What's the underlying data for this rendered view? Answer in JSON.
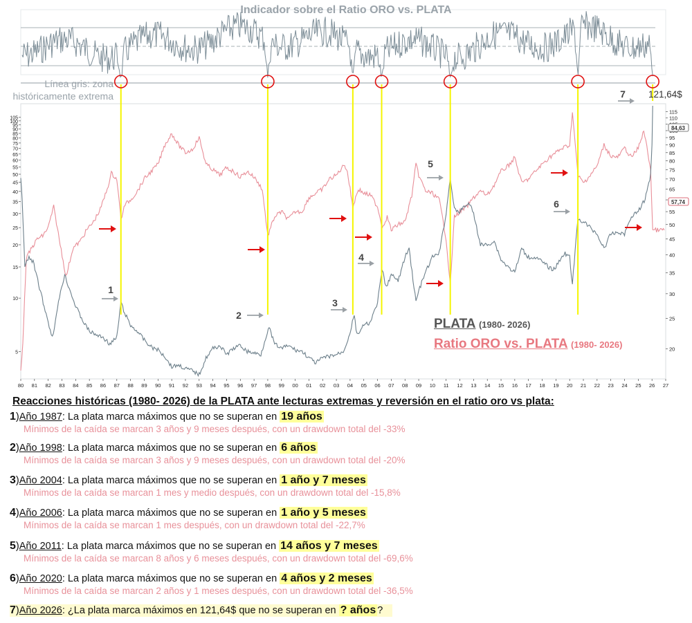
{
  "indicator_title": "Indicador sobre el Ratio ORO vs. PLATA",
  "gray_line_note": "Línea gris: zona históricamente extrema",
  "legend": {
    "silver_label": "PLATA",
    "silver_period": "(1980- 2026)",
    "ratio_label": "Ratio ORO vs. PLATA",
    "ratio_period": "(1980- 2026)"
  },
  "colors": {
    "silver": "#6c7f8a",
    "ratio": "#e88e98",
    "signal_line": "#f5f500",
    "circle": "#e01010",
    "arrow_red": "#e01010",
    "arrow_gray": "#9aa0a5",
    "indicator": "#7b8c96",
    "highlight": "#ffff9a"
  },
  "price_label": "121,64$",
  "ratio_value_label": "84,63",
  "silver_value_label": "57,74",
  "chart_data": {
    "type": "line",
    "x_tick_labels": [
      "80",
      "81",
      "82",
      "83",
      "84",
      "85",
      "86",
      "87",
      "88",
      "89",
      "90",
      "91",
      "92",
      "93",
      "94",
      "95",
      "96",
      "97",
      "98",
      "99",
      "00",
      "01",
      "02",
      "03",
      "04",
      "05",
      "06",
      "07",
      "08",
      "09",
      "10",
      "11",
      "12",
      "13",
      "14",
      "15",
      "16",
      "17",
      "18",
      "19",
      "20",
      "21",
      "22",
      "23",
      "24",
      "25",
      "26",
      "27"
    ],
    "x_range": [
      1980,
      2027
    ],
    "left_axis": {
      "scale": "log",
      "range": [
        3.5,
        125
      ],
      "ticks": [
        5,
        10,
        15,
        20,
        25,
        30,
        35,
        40,
        45,
        50,
        55,
        60,
        65,
        70,
        75,
        80,
        85,
        90,
        95,
        100,
        105
      ]
    },
    "right_axis": {
      "scale": "log",
      "range": [
        16,
        122
      ],
      "ticks": [
        20,
        25,
        30,
        35,
        40,
        45,
        50,
        55,
        60,
        65,
        70,
        75,
        80,
        85,
        90,
        95,
        100,
        105,
        110,
        115
      ]
    },
    "series": [
      {
        "name": "PLATA",
        "axis": "left",
        "points": [
          [
            1980.0,
            48
          ],
          [
            1980.1,
            36
          ],
          [
            1980.3,
            15
          ],
          [
            1980.6,
            17
          ],
          [
            1980.9,
            16
          ],
          [
            1981.3,
            12
          ],
          [
            1981.7,
            9
          ],
          [
            1982.3,
            6
          ],
          [
            1982.6,
            8
          ],
          [
            1982.9,
            11
          ],
          [
            1983.2,
            13.5
          ],
          [
            1983.6,
            11
          ],
          [
            1984.0,
            9
          ],
          [
            1984.5,
            7.5
          ],
          [
            1985.0,
            6.5
          ],
          [
            1985.5,
            6.2
          ],
          [
            1986.0,
            6.0
          ],
          [
            1986.5,
            5.5
          ],
          [
            1987.0,
            6.0
          ],
          [
            1987.3,
            9.5
          ],
          [
            1987.5,
            8.5
          ],
          [
            1988.0,
            7.0
          ],
          [
            1988.5,
            6.5
          ],
          [
            1989.0,
            5.8
          ],
          [
            1989.5,
            5.3
          ],
          [
            1990.0,
            5.1
          ],
          [
            1990.5,
            4.7
          ],
          [
            1991.0,
            4.1
          ],
          [
            1991.5,
            4.2
          ],
          [
            1992.0,
            4.0
          ],
          [
            1992.5,
            3.9
          ],
          [
            1993.0,
            3.7
          ],
          [
            1993.5,
            4.6
          ],
          [
            1994.0,
            5.2
          ],
          [
            1994.5,
            5.4
          ],
          [
            1995.0,
            4.8
          ],
          [
            1995.5,
            5.2
          ],
          [
            1996.0,
            5.4
          ],
          [
            1996.5,
            5.0
          ],
          [
            1997.0,
            4.9
          ],
          [
            1997.5,
            4.8
          ],
          [
            1997.9,
            6.2
          ],
          [
            1998.1,
            6.8
          ],
          [
            1998.5,
            5.5
          ],
          [
            1999.0,
            5.2
          ],
          [
            1999.5,
            5.4
          ],
          [
            2000.0,
            5.1
          ],
          [
            2000.5,
            5.0
          ],
          [
            2001.0,
            4.6
          ],
          [
            2001.5,
            4.3
          ],
          [
            2002.0,
            4.6
          ],
          [
            2002.5,
            4.7
          ],
          [
            2003.0,
            4.8
          ],
          [
            2003.5,
            5.0
          ],
          [
            2003.9,
            6.0
          ],
          [
            2004.3,
            8.0
          ],
          [
            2004.5,
            6.2
          ],
          [
            2005.0,
            7.0
          ],
          [
            2005.5,
            7.3
          ],
          [
            2006.0,
            9.5
          ],
          [
            2006.35,
            14.5
          ],
          [
            2006.6,
            11.5
          ],
          [
            2007.0,
            13.5
          ],
          [
            2007.5,
            12.5
          ],
          [
            2008.0,
            17
          ],
          [
            2008.3,
            19
          ],
          [
            2008.8,
            9.5
          ],
          [
            2009.0,
            11
          ],
          [
            2009.5,
            14
          ],
          [
            2010.0,
            17
          ],
          [
            2010.5,
            18
          ],
          [
            2011.0,
            30
          ],
          [
            2011.3,
            48
          ],
          [
            2011.6,
            32
          ],
          [
            2011.9,
            30
          ],
          [
            2012.3,
            33
          ],
          [
            2012.7,
            34
          ],
          [
            2013.0,
            30
          ],
          [
            2013.5,
            20
          ],
          [
            2014.0,
            20
          ],
          [
            2014.5,
            21
          ],
          [
            2015.0,
            16.5
          ],
          [
            2015.5,
            15
          ],
          [
            2016.0,
            14
          ],
          [
            2016.5,
            19
          ],
          [
            2017.0,
            17
          ],
          [
            2017.5,
            17
          ],
          [
            2018.0,
            16
          ],
          [
            2018.7,
            14.5
          ],
          [
            2019.0,
            15
          ],
          [
            2019.6,
            18
          ],
          [
            2020.0,
            17
          ],
          [
            2020.2,
            12
          ],
          [
            2020.6,
            28
          ],
          [
            2021.0,
            27
          ],
          [
            2021.5,
            25
          ],
          [
            2022.0,
            23
          ],
          [
            2022.5,
            19
          ],
          [
            2023.0,
            23
          ],
          [
            2023.5,
            23.5
          ],
          [
            2024.0,
            23
          ],
          [
            2024.5,
            29
          ],
          [
            2025.0,
            31
          ],
          [
            2025.5,
            36
          ],
          [
            2025.9,
            50
          ],
          [
            2026.0,
            75
          ],
          [
            2026.05,
            121.64
          ]
        ]
      },
      {
        "name": "Ratio ORO vs. PLATA",
        "axis": "right",
        "points": [
          [
            1980.0,
            17
          ],
          [
            1980.15,
            21
          ],
          [
            1980.4,
            39
          ],
          [
            1980.8,
            42
          ],
          [
            1981.2,
            45
          ],
          [
            1981.6,
            46
          ],
          [
            1982.0,
            49
          ],
          [
            1982.4,
            57
          ],
          [
            1982.8,
            45
          ],
          [
            1983.3,
            34
          ],
          [
            1983.8,
            42
          ],
          [
            1984.3,
            44
          ],
          [
            1984.8,
            48
          ],
          [
            1985.3,
            51
          ],
          [
            1985.8,
            56
          ],
          [
            1986.3,
            65
          ],
          [
            1986.6,
            73
          ],
          [
            1987.0,
            70
          ],
          [
            1987.3,
            52
          ],
          [
            1987.6,
            58
          ],
          [
            1988.0,
            60
          ],
          [
            1988.5,
            64
          ],
          [
            1989.0,
            70
          ],
          [
            1989.5,
            74
          ],
          [
            1990.0,
            78
          ],
          [
            1990.5,
            90
          ],
          [
            1991.0,
            98
          ],
          [
            1991.5,
            90
          ],
          [
            1992.0,
            85
          ],
          [
            1992.5,
            87
          ],
          [
            1993.0,
            95
          ],
          [
            1993.5,
            78
          ],
          [
            1994.0,
            75
          ],
          [
            1994.5,
            72
          ],
          [
            1995.0,
            76
          ],
          [
            1995.5,
            74
          ],
          [
            1996.0,
            71
          ],
          [
            1996.5,
            74
          ],
          [
            1997.0,
            71
          ],
          [
            1997.6,
            65
          ],
          [
            1998.0,
            46
          ],
          [
            1998.5,
            53
          ],
          [
            1999.0,
            55
          ],
          [
            1999.5,
            52
          ],
          [
            2000.0,
            55
          ],
          [
            2000.5,
            55
          ],
          [
            2001.0,
            61
          ],
          [
            2001.5,
            63
          ],
          [
            2002.0,
            65
          ],
          [
            2002.5,
            70
          ],
          [
            2003.0,
            72
          ],
          [
            2003.6,
            78
          ],
          [
            2003.8,
            74
          ],
          [
            2004.2,
            57
          ],
          [
            2004.6,
            65
          ],
          [
            2005.0,
            63
          ],
          [
            2005.5,
            62
          ],
          [
            2006.0,
            57
          ],
          [
            2006.35,
            49
          ],
          [
            2006.7,
            53
          ],
          [
            2007.0,
            48
          ],
          [
            2007.5,
            50
          ],
          [
            2008.0,
            51
          ],
          [
            2008.5,
            62
          ],
          [
            2008.8,
            78
          ],
          [
            2009.0,
            72
          ],
          [
            2009.5,
            64
          ],
          [
            2010.0,
            63
          ],
          [
            2010.5,
            60
          ],
          [
            2011.0,
            45
          ],
          [
            2011.3,
            32
          ],
          [
            2011.6,
            53
          ],
          [
            2012.0,
            55
          ],
          [
            2012.5,
            57
          ],
          [
            2013.0,
            61
          ],
          [
            2013.5,
            64
          ],
          [
            2014.0,
            62
          ],
          [
            2014.5,
            67
          ],
          [
            2015.0,
            74
          ],
          [
            2015.5,
            77
          ],
          [
            2016.0,
            82
          ],
          [
            2016.5,
            68
          ],
          [
            2017.0,
            70
          ],
          [
            2017.5,
            74
          ],
          [
            2018.0,
            78
          ],
          [
            2018.5,
            82
          ],
          [
            2019.0,
            85
          ],
          [
            2019.5,
            88
          ],
          [
            2020.0,
            90
          ],
          [
            2020.2,
            115
          ],
          [
            2020.6,
            72
          ],
          [
            2021.0,
            68
          ],
          [
            2021.5,
            72
          ],
          [
            2022.0,
            77
          ],
          [
            2022.5,
            90
          ],
          [
            2023.0,
            83
          ],
          [
            2023.5,
            82
          ],
          [
            2024.0,
            88
          ],
          [
            2024.5,
            82
          ],
          [
            2025.0,
            88
          ],
          [
            2025.4,
            100
          ],
          [
            2025.7,
            85
          ],
          [
            2025.9,
            75
          ],
          [
            2026.05,
            48
          ],
          [
            2026.9,
            48
          ]
        ]
      }
    ],
    "indicator_panel": {
      "title": "Indicador sobre el Ratio ORO vs. PLATA",
      "extreme_zone_years": [
        1987.3,
        1998.0,
        2004.2,
        2006.3,
        2011.3,
        2020.6,
        2026.05
      ]
    },
    "events": [
      {
        "label": "1",
        "year": 1987.3
      },
      {
        "label": "2",
        "year": 1998.0
      },
      {
        "label": "3",
        "year": 2004.2
      },
      {
        "label": "4",
        "year": 2006.3
      },
      {
        "label": "5",
        "year": 2011.3
      },
      {
        "label": "6",
        "year": 2020.6
      },
      {
        "label": "7",
        "year": 2026.05
      }
    ]
  },
  "text_section": {
    "heading": "Reacciones históricas (1980- 2026) de la PLATA ante lecturas extremas y reversión en el ratio oro vs plata:",
    "items": [
      {
        "num": "1",
        "paren": ")",
        "year": "Año 1987",
        "text": ": La plata marca máximos que no se superan en ",
        "highlight": "19 años",
        "tail": "",
        "sub": "Mínimos de la caída se marcan 3 años y 9 meses después, con un drawdown total del -33%"
      },
      {
        "num": "2",
        "paren": ")",
        "year": "Año 1998",
        "text": ": La plata marca máximos que no se superan en ",
        "highlight": "6 años",
        "tail": "",
        "sub": "Mínimos de la caída se marcan 3 años y 9 meses después, con un drawdown total del -20%"
      },
      {
        "num": "3",
        "paren": ")",
        "year": "Año 2004",
        "text": ": La plata marca máximos que no se superan en ",
        "highlight": "1 año y 7 meses",
        "tail": "",
        "sub": "Mínimos de la caída se marcan 1 mes y medio después, con un drawdown total del -15,8%"
      },
      {
        "num": "4",
        "paren": ")",
        "year": "Año 2006",
        "text": ": La plata marca máximos que no se superan en ",
        "highlight": "1 año y 5 meses",
        "tail": "",
        "sub": "Mínimos de la caída se marcan 1 mes después, con un drawdown total del -22,7%"
      },
      {
        "num": "5",
        "paren": ")",
        "year": "Año 2011",
        "text": ": La plata marca máximos que no se superan en ",
        "highlight": "14 años y 7 meses",
        "tail": "",
        "sub": "Mínimos de la caída se marcan 8 años y 6 meses después, con un drawdown total del -69,6%"
      },
      {
        "num": "6",
        "paren": ")",
        "year": "Año 2020",
        "text": ": La plata marca máximos que no se superan en ",
        "highlight": "4 años y 2 meses",
        "tail": "",
        "sub": "Mínimos de la caída se marcan 2 años y 1 meses después, con un drawdown total del -36,5%"
      },
      {
        "num": "7",
        "paren": ")",
        "year": "Año 2026",
        "text": ": ¿La plata marca máximos en 121,64$ que no se superan en ",
        "highlight": "? años",
        "tail": "?",
        "sub": ""
      }
    ]
  }
}
